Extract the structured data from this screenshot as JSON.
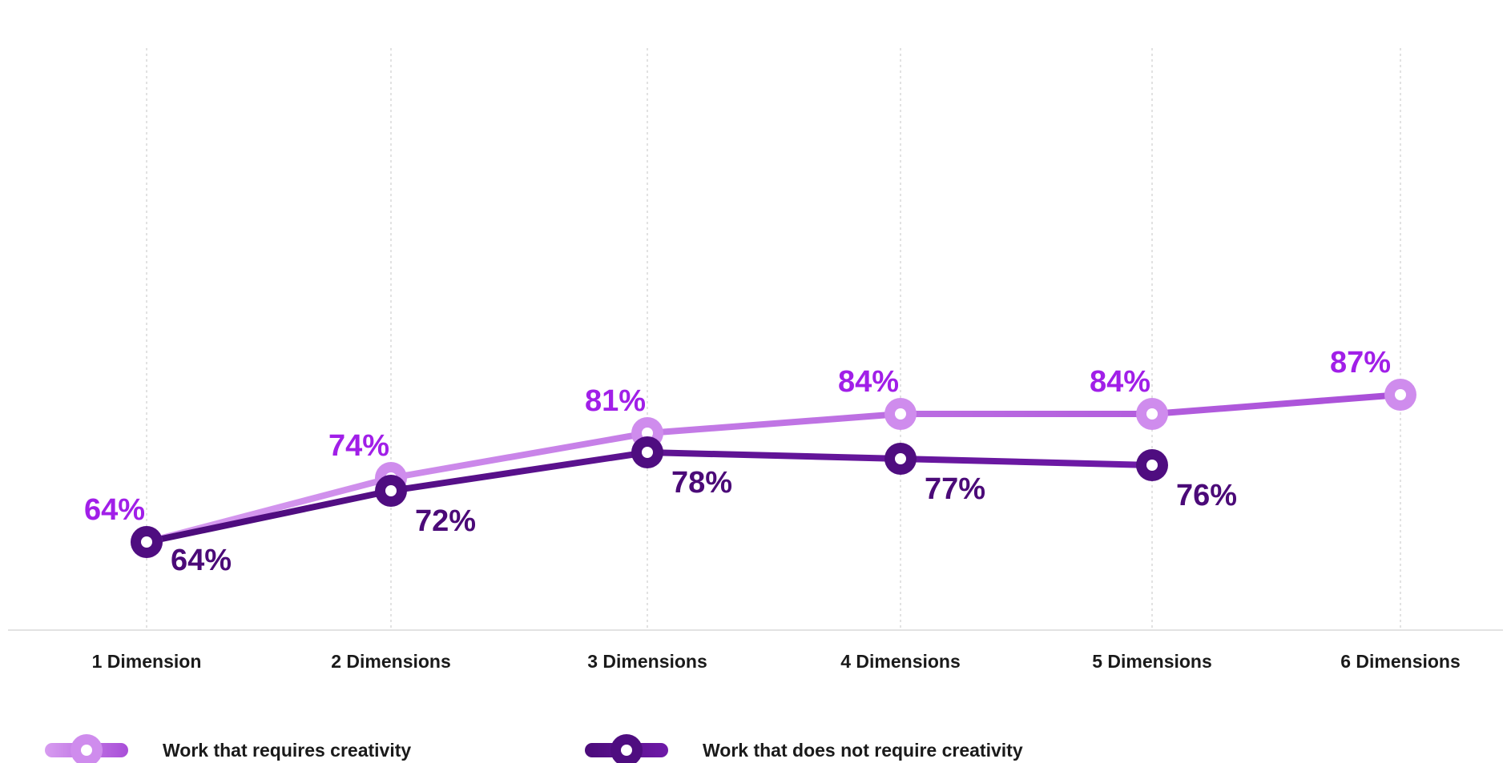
{
  "chart_data": {
    "type": "line",
    "categories": [
      "1 Dimension",
      "2 Dimensions",
      "3 Dimensions",
      "4 Dimensions",
      "5 Dimensions",
      "6 Dimensions"
    ],
    "series": [
      {
        "name": "Work that requires creativity",
        "values": [
          64,
          74,
          81,
          84,
          84,
          87
        ],
        "labels": [
          "64%",
          "74%",
          "81%",
          "84%",
          "84%",
          "87%"
        ],
        "color": "#b866e0",
        "label_color": "#a11fe8"
      },
      {
        "name": "Work that does not require creativity",
        "values": [
          64,
          72,
          78,
          77,
          76,
          null
        ],
        "labels": [
          "64%",
          "72%",
          "78%",
          "77%",
          "76%",
          ""
        ],
        "color": "#5d1591",
        "label_color": "#4b0a78"
      }
    ],
    "title": "",
    "xlabel": "",
    "ylabel": "",
    "ylim": [
      60,
      90
    ],
    "grid": "vertical dotted",
    "legend_position": "bottom-left"
  }
}
